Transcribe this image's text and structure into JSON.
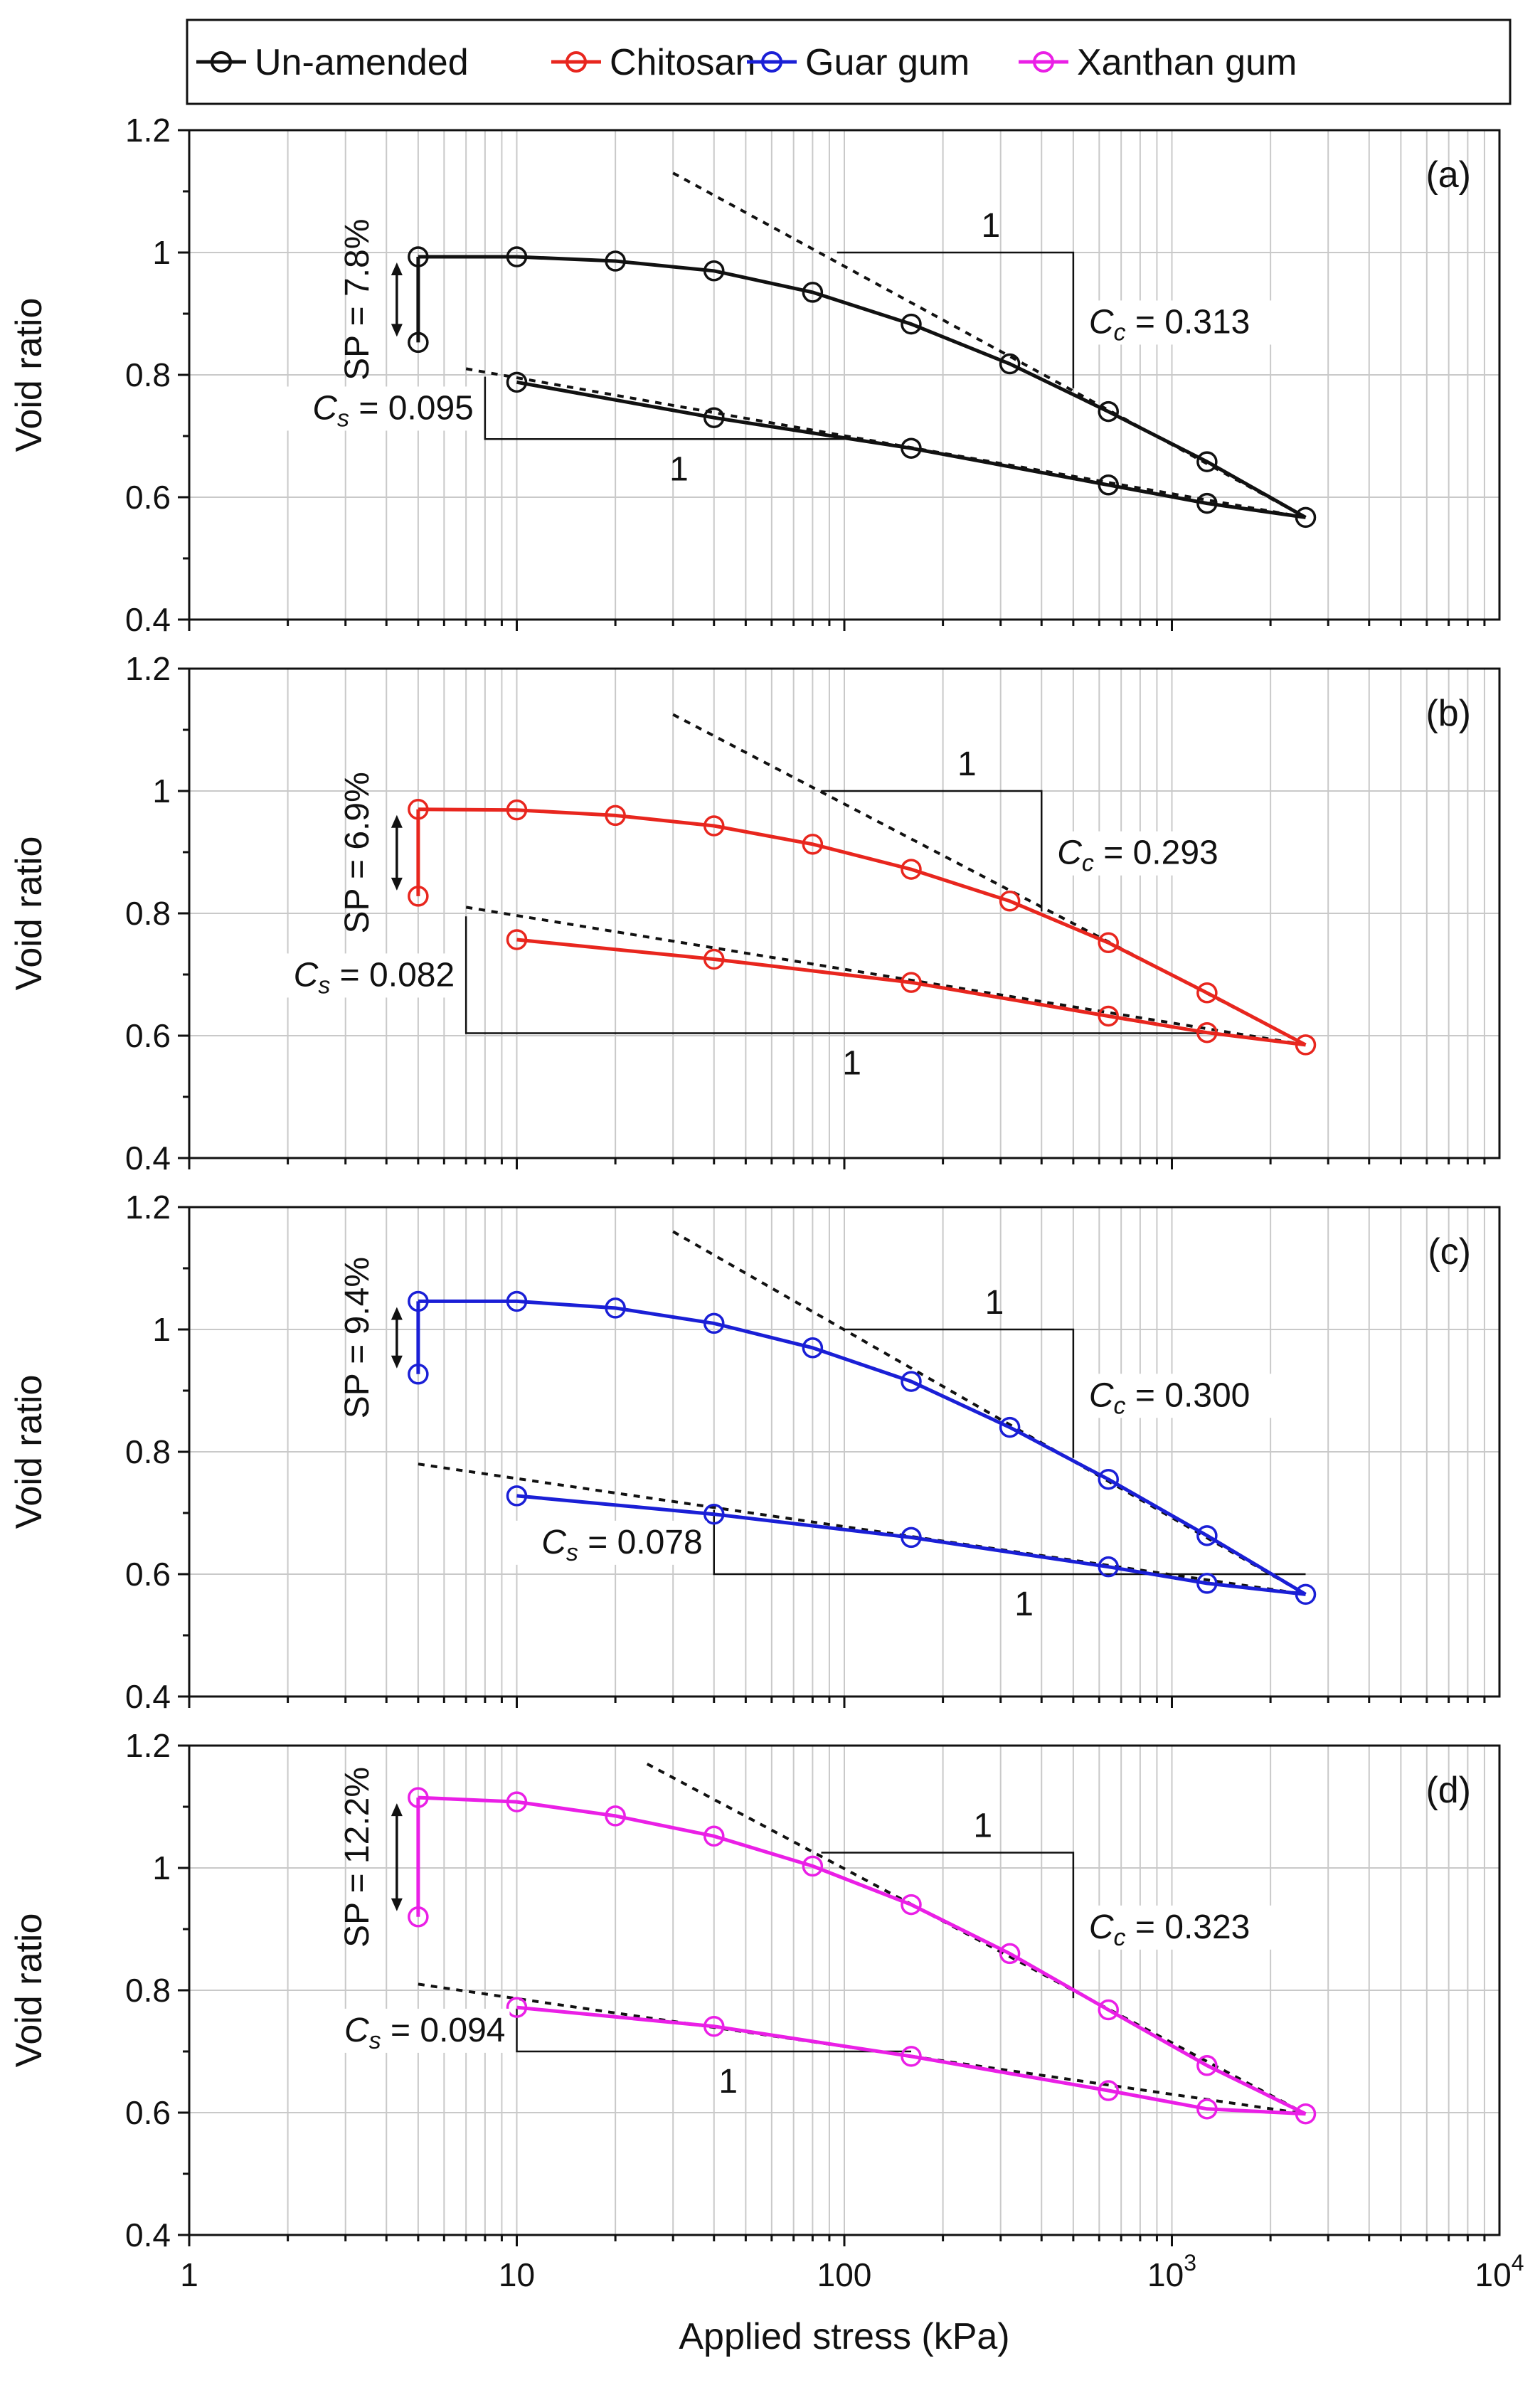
{
  "chart_data": {
    "type": "line",
    "xscale": "log",
    "xlim": [
      1,
      10000
    ],
    "xlabel": "Applied stress (kPa)",
    "x_ticks": [
      "1",
      "10",
      "100",
      "10",
      "10"
    ],
    "x_tick_exponents": [
      "",
      "",
      "",
      "3",
      "4"
    ],
    "ylabel": "Void ratio",
    "ylim": [
      0.4,
      1.2
    ],
    "y_ticks": [
      "0.4",
      "0.6",
      "0.8",
      "1",
      "1.2"
    ],
    "legend": [
      {
        "name": "Un-amended",
        "color": "#111111"
      },
      {
        "name": "Chitosan",
        "color": "#e8261e"
      },
      {
        "name": "Guar gum",
        "color": "#1a1fd6"
      },
      {
        "name": "Xanthan gum",
        "color": "#ea1fe6"
      }
    ],
    "panels": [
      {
        "label": "(a)",
        "series": "Un-amended",
        "color": "#111111",
        "swell": {
          "x": [
            5,
            5
          ],
          "y": [
            0.853,
            0.993
          ]
        },
        "loading": {
          "x": [
            5,
            10,
            20,
            40,
            80,
            160,
            320,
            640,
            1280,
            2560
          ],
          "y": [
            0.993,
            0.993,
            0.986,
            0.97,
            0.935,
            0.883,
            0.818,
            0.74,
            0.658,
            0.567
          ]
        },
        "unloading": {
          "x": [
            2560,
            1280,
            640,
            160,
            40,
            10
          ],
          "y": [
            0.567,
            0.59,
            0.62,
            0.68,
            0.73,
            0.788
          ]
        },
        "sp_text": "SP = 7.8%",
        "cc_symbol": "C",
        "cc_sub": "c",
        "cc_value": " = 0.313",
        "cs_symbol": "C",
        "cs_sub": "s",
        "cs_value": " = 0.095",
        "slope_one": "1",
        "cc_line": {
          "x": [
            30,
            2560
          ],
          "y": [
            1.13,
            0.567
          ]
        },
        "cs_line": {
          "x": [
            7,
            2560
          ],
          "y": [
            0.81,
            0.567
          ]
        },
        "cc_tri": {
          "x": [
            95,
            500
          ],
          "y": [
            1.0,
            0.778
          ]
        },
        "cs_tri": {
          "x": [
            8,
            100
          ],
          "y": [
            0.797,
            0.695
          ]
        }
      },
      {
        "label": "(b)",
        "series": "Chitosan",
        "color": "#e8261e",
        "swell": {
          "x": [
            5,
            5
          ],
          "y": [
            0.828,
            0.97
          ]
        },
        "loading": {
          "x": [
            5,
            10,
            20,
            40,
            80,
            160,
            320,
            640,
            1280,
            2560
          ],
          "y": [
            0.97,
            0.969,
            0.96,
            0.943,
            0.913,
            0.872,
            0.82,
            0.752,
            0.67,
            0.585
          ]
        },
        "unloading": {
          "x": [
            2560,
            1280,
            640,
            160,
            40,
            10
          ],
          "y": [
            0.585,
            0.605,
            0.632,
            0.687,
            0.725,
            0.757
          ]
        },
        "sp_text": "SP = 6.9%",
        "cc_symbol": "C",
        "cc_sub": "c",
        "cc_value": " = 0.293",
        "cs_symbol": "C",
        "cs_sub": "s",
        "cs_value": " = 0.082",
        "slope_one": "1",
        "cc_line": {
          "x": [
            30,
            2560
          ],
          "y": [
            1.125,
            0.585
          ]
        },
        "cs_line": {
          "x": [
            7,
            2560
          ],
          "y": [
            0.81,
            0.585
          ]
        },
        "cc_tri": {
          "x": [
            85,
            400
          ],
          "y": [
            1.0,
            0.803
          ]
        },
        "cs_tri": {
          "x": [
            7,
            1300
          ],
          "y": [
            0.795,
            0.604
          ]
        }
      },
      {
        "label": "(c)",
        "series": "Guar gum",
        "color": "#1a1fd6",
        "swell": {
          "x": [
            5,
            5
          ],
          "y": [
            0.927,
            1.046
          ]
        },
        "loading": {
          "x": [
            5,
            10,
            20,
            40,
            80,
            160,
            320,
            640,
            1280,
            2560
          ],
          "y": [
            1.046,
            1.046,
            1.035,
            1.01,
            0.97,
            0.915,
            0.84,
            0.755,
            0.663,
            0.567
          ]
        },
        "unloading": {
          "x": [
            2560,
            1280,
            640,
            160,
            40,
            10
          ],
          "y": [
            0.567,
            0.585,
            0.612,
            0.66,
            0.698,
            0.728
          ]
        },
        "sp_text": "SP = 9.4%",
        "cc_symbol": "C",
        "cc_sub": "c",
        "cc_value": " = 0.300",
        "cs_symbol": "C",
        "cs_sub": "s",
        "cs_value": " = 0.078",
        "slope_one": "1",
        "cc_line": {
          "x": [
            30,
            2560
          ],
          "y": [
            1.16,
            0.567
          ]
        },
        "cs_line": {
          "x": [
            5,
            2560
          ],
          "y": [
            0.78,
            0.567
          ]
        },
        "cc_tri": {
          "x": [
            100,
            500
          ],
          "y": [
            1.0,
            0.79
          ]
        },
        "cs_tri": {
          "x": [
            40,
            2560
          ],
          "y": [
            0.705,
            0.6
          ]
        }
      },
      {
        "label": "(d)",
        "series": "Xanthan gum",
        "color": "#ea1fe6",
        "swell": {
          "x": [
            5,
            5
          ],
          "y": [
            0.92,
            1.115
          ]
        },
        "loading": {
          "x": [
            5,
            10,
            20,
            40,
            80,
            160,
            320,
            640,
            1280,
            2560
          ],
          "y": [
            1.115,
            1.108,
            1.085,
            1.052,
            1.003,
            0.94,
            0.86,
            0.768,
            0.677,
            0.598
          ]
        },
        "unloading": {
          "x": [
            2560,
            1280,
            640,
            160,
            40,
            10
          ],
          "y": [
            0.598,
            0.606,
            0.636,
            0.692,
            0.741,
            0.772
          ]
        },
        "sp_text": "SP = 12.2%",
        "cc_symbol": "C",
        "cc_sub": "c",
        "cc_value": " = 0.323",
        "cs_symbol": "C",
        "cs_sub": "s",
        "cs_value": " = 0.094",
        "slope_one": "1",
        "cc_line": {
          "x": [
            25,
            2560
          ],
          "y": [
            1.17,
            0.598
          ]
        },
        "cs_line": {
          "x": [
            5,
            2560
          ],
          "y": [
            0.81,
            0.598
          ]
        },
        "cc_tri": {
          "x": [
            85,
            500
          ],
          "y": [
            1.025,
            0.787
          ]
        },
        "cs_tri": {
          "x": [
            10,
            160
          ],
          "y": [
            0.77,
            0.7
          ]
        }
      }
    ]
  }
}
